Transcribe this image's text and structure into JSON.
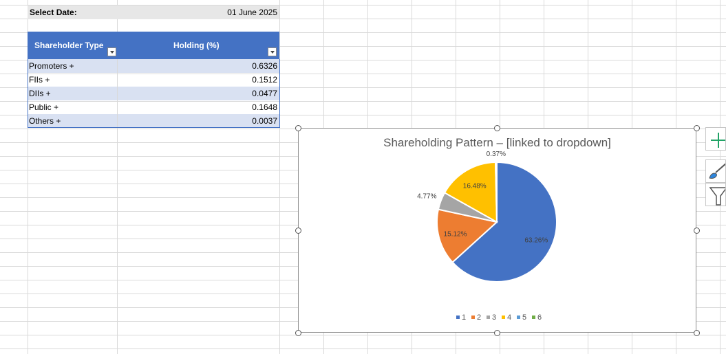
{
  "sheet": {
    "select_date_label": "Select Date:",
    "select_date_value": "01 June 2025"
  },
  "table": {
    "headers": [
      "Shareholder Type",
      "Holding (%)"
    ],
    "rows": [
      {
        "type": "Promoters +",
        "holding": "0.6326"
      },
      {
        "type": "FIIs +",
        "holding": "0.1512"
      },
      {
        "type": "DIIs +",
        "holding": "0.0477"
      },
      {
        "type": "Public +",
        "holding": "0.1648"
      },
      {
        "type": "Others +",
        "holding": "0.0037"
      }
    ]
  },
  "chart_data": {
    "type": "pie",
    "title": "Shareholding Pattern – [linked to dropdown]",
    "categories": [
      "1",
      "2",
      "3",
      "4",
      "5",
      "6"
    ],
    "values": [
      63.26,
      15.12,
      4.77,
      16.48,
      0.37,
      0
    ],
    "data_labels": [
      "63.26%",
      "15.12%",
      "4.77%",
      "16.48%",
      "0.37%",
      ""
    ],
    "colors": [
      "#4472c4",
      "#ed7d31",
      "#a5a5a5",
      "#ffc000",
      "#5b9bd5",
      "#70ad47"
    ],
    "legend_position": "bottom"
  },
  "icons": {
    "chart_elements": "plus-icon",
    "chart_styles": "brush-icon",
    "chart_filters": "funnel-icon"
  }
}
